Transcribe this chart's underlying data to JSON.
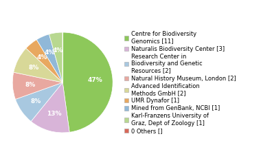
{
  "labels": [
    "Centre for Biodiversity\nGenomics [11]",
    "Naturalis Biodiversity Center [3]",
    "Research Center in\nBiodiversity and Genetic\nResources [2]",
    "Natural History Museum, London [2]",
    "Advanced Identification\nMethods GmbH [2]",
    "UMR Dynafor [1]",
    "Mined from GenBank, NCBI [1]",
    "Karl-Franzens University of\nGraz, Dept of Zoology [1]",
    "0 Others []"
  ],
  "values": [
    11,
    3,
    2,
    2,
    2,
    1,
    1,
    1,
    1e-05
  ],
  "colors": [
    "#8DC85A",
    "#D8B4D8",
    "#A8C8E0",
    "#E8A8A0",
    "#D8D898",
    "#E8A860",
    "#90B8D8",
    "#B8D890",
    "#D86858"
  ],
  "pct_labels": [
    "47%",
    "13%",
    "8%",
    "8%",
    "8%",
    "4%",
    "4%",
    "4%",
    ""
  ],
  "background_color": "#ffffff",
  "fontsize": 6.5,
  "legend_fontsize": 6.0
}
